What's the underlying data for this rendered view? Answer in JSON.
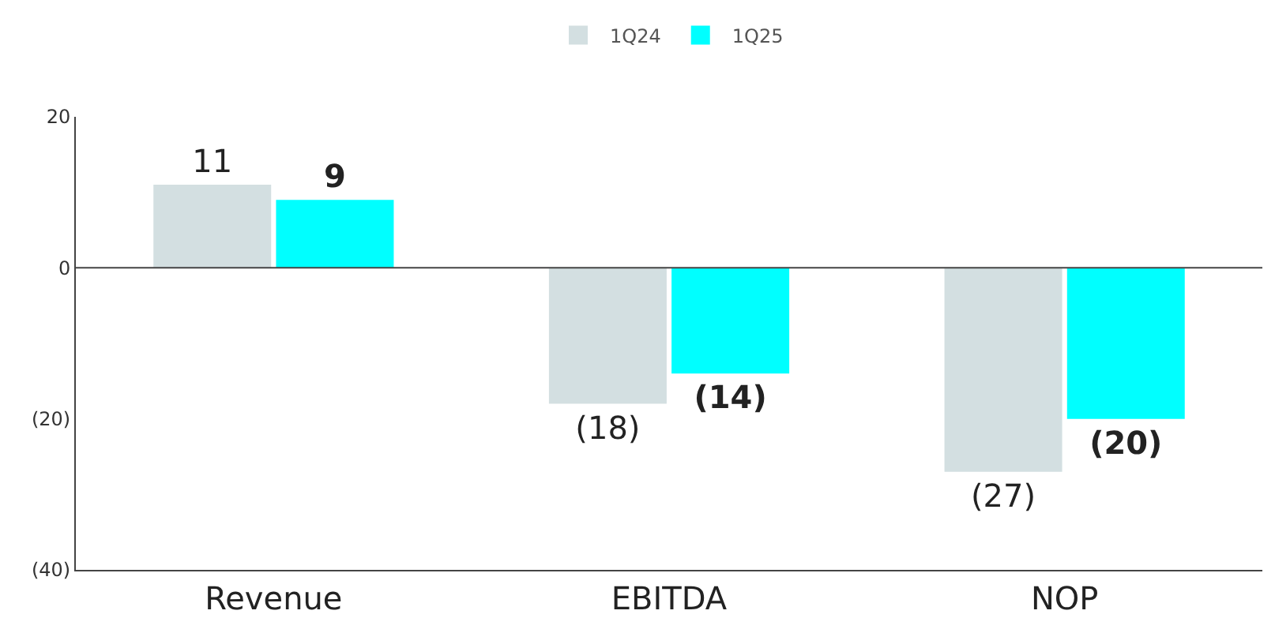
{
  "chart_data": {
    "type": "bar",
    "categories": [
      "Revenue",
      "EBITDA",
      "NOP"
    ],
    "series": [
      {
        "name": "1Q24",
        "color": "#d3dfe1",
        "values": [
          11,
          -18,
          -27
        ],
        "value_labels": [
          "11",
          "(18)",
          "(27)"
        ]
      },
      {
        "name": "1Q25",
        "color": "#00ffff",
        "values": [
          9,
          -14,
          -20
        ],
        "value_labels": [
          "9",
          "(14)",
          "(20)"
        ]
      }
    ],
    "ylim": [
      -40,
      20
    ],
    "yticks": [
      20,
      0,
      {
        "value": -20,
        "label": "(20)"
      },
      {
        "value": -40,
        "label": "(40)"
      }
    ],
    "ref_lines": [
      {
        "axis": "y",
        "value": 0,
        "color": "#444444"
      }
    ],
    "legend": "top"
  }
}
